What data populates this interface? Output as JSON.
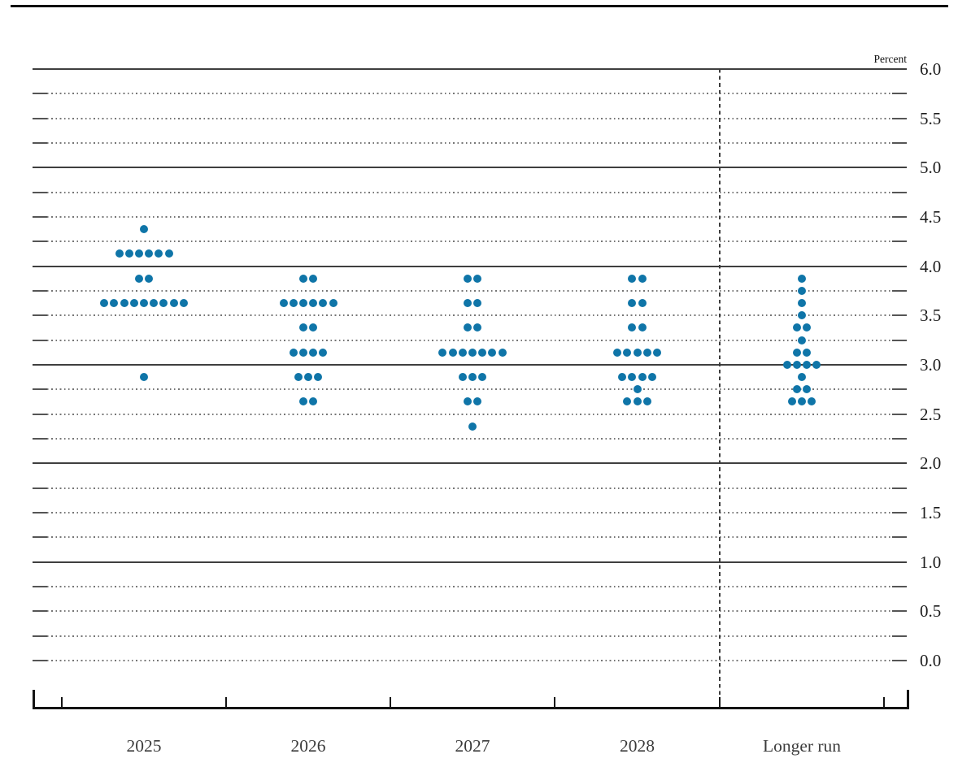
{
  "chart_data": {
    "type": "scatter",
    "variant": "fomc-dot-plot",
    "title": "",
    "xlabel": "",
    "ylabel": "Percent",
    "categories": [
      "2025",
      "2026",
      "2027",
      "2028",
      "Longer run"
    ],
    "ylim": [
      0.0,
      6.0
    ],
    "grid": "on",
    "grid_step": 0.25,
    "label_step": 0.5,
    "y_tick_labels": [
      "6.0",
      "5.5",
      "5.0",
      "4.5",
      "4.0",
      "3.5",
      "3.0",
      "2.5",
      "2.0",
      "1.5",
      "1.0",
      "0.5",
      "0.0"
    ],
    "legend_position": "none",
    "dot_color": "#0f75a8",
    "dots_per_column_total": 19,
    "series": [
      {
        "category": "2025",
        "dots": [
          {
            "rate": 4.375,
            "count": 1
          },
          {
            "rate": 4.125,
            "count": 6
          },
          {
            "rate": 3.875,
            "count": 2
          },
          {
            "rate": 3.625,
            "count": 9
          },
          {
            "rate": 2.875,
            "count": 1
          }
        ]
      },
      {
        "category": "2026",
        "dots": [
          {
            "rate": 3.875,
            "count": 2
          },
          {
            "rate": 3.625,
            "count": 6
          },
          {
            "rate": 3.375,
            "count": 2
          },
          {
            "rate": 3.125,
            "count": 4
          },
          {
            "rate": 2.875,
            "count": 3
          },
          {
            "rate": 2.625,
            "count": 2
          }
        ]
      },
      {
        "category": "2027",
        "dots": [
          {
            "rate": 3.875,
            "count": 2
          },
          {
            "rate": 3.625,
            "count": 2
          },
          {
            "rate": 3.375,
            "count": 2
          },
          {
            "rate": 3.125,
            "count": 7
          },
          {
            "rate": 2.875,
            "count": 3
          },
          {
            "rate": 2.625,
            "count": 2
          },
          {
            "rate": 2.375,
            "count": 1
          }
        ]
      },
      {
        "category": "2028",
        "dots": [
          {
            "rate": 3.875,
            "count": 2
          },
          {
            "rate": 3.625,
            "count": 2
          },
          {
            "rate": 3.375,
            "count": 2
          },
          {
            "rate": 3.125,
            "count": 5
          },
          {
            "rate": 2.875,
            "count": 4
          },
          {
            "rate": 2.75,
            "count": 1
          },
          {
            "rate": 2.625,
            "count": 3
          }
        ]
      },
      {
        "category": "Longer run",
        "dots": [
          {
            "rate": 3.875,
            "count": 1
          },
          {
            "rate": 3.75,
            "count": 1
          },
          {
            "rate": 3.625,
            "count": 1
          },
          {
            "rate": 3.5,
            "count": 1
          },
          {
            "rate": 3.375,
            "count": 2
          },
          {
            "rate": 3.25,
            "count": 1
          },
          {
            "rate": 3.125,
            "count": 2
          },
          {
            "rate": 3.0,
            "count": 4
          },
          {
            "rate": 2.875,
            "count": 1
          },
          {
            "rate": 2.75,
            "count": 2
          },
          {
            "rate": 2.625,
            "count": 3
          }
        ]
      }
    ],
    "separator_after_category": "2028"
  }
}
